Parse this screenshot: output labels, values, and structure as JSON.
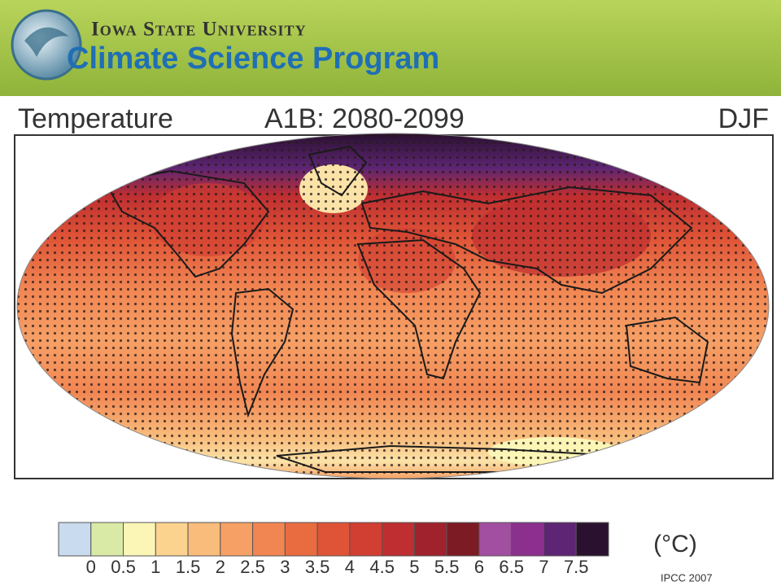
{
  "header": {
    "university": "Iowa State University",
    "program": "Climate Science Program"
  },
  "map": {
    "title": "Temperature",
    "scenario": "A1B: 2080-2099",
    "season": "DJF"
  },
  "legend": {
    "ticks": [
      0,
      0.5,
      1,
      1.5,
      2,
      2.5,
      3,
      3.5,
      4,
      4.5,
      5,
      5.5,
      6,
      6.5,
      7,
      7.5
    ],
    "colors": [
      "#c9dbee",
      "#d9eaa6",
      "#fbf6b6",
      "#fbd28e",
      "#f9bc7b",
      "#f6a066",
      "#f18653",
      "#e96b40",
      "#df5336",
      "#d13e32",
      "#bf2e31",
      "#9f222d",
      "#7c1b24",
      "#a24ea1",
      "#8b318d",
      "#5d2573",
      "#2a1130"
    ],
    "unit": "(°C)"
  },
  "source": "IPCC 2007"
}
